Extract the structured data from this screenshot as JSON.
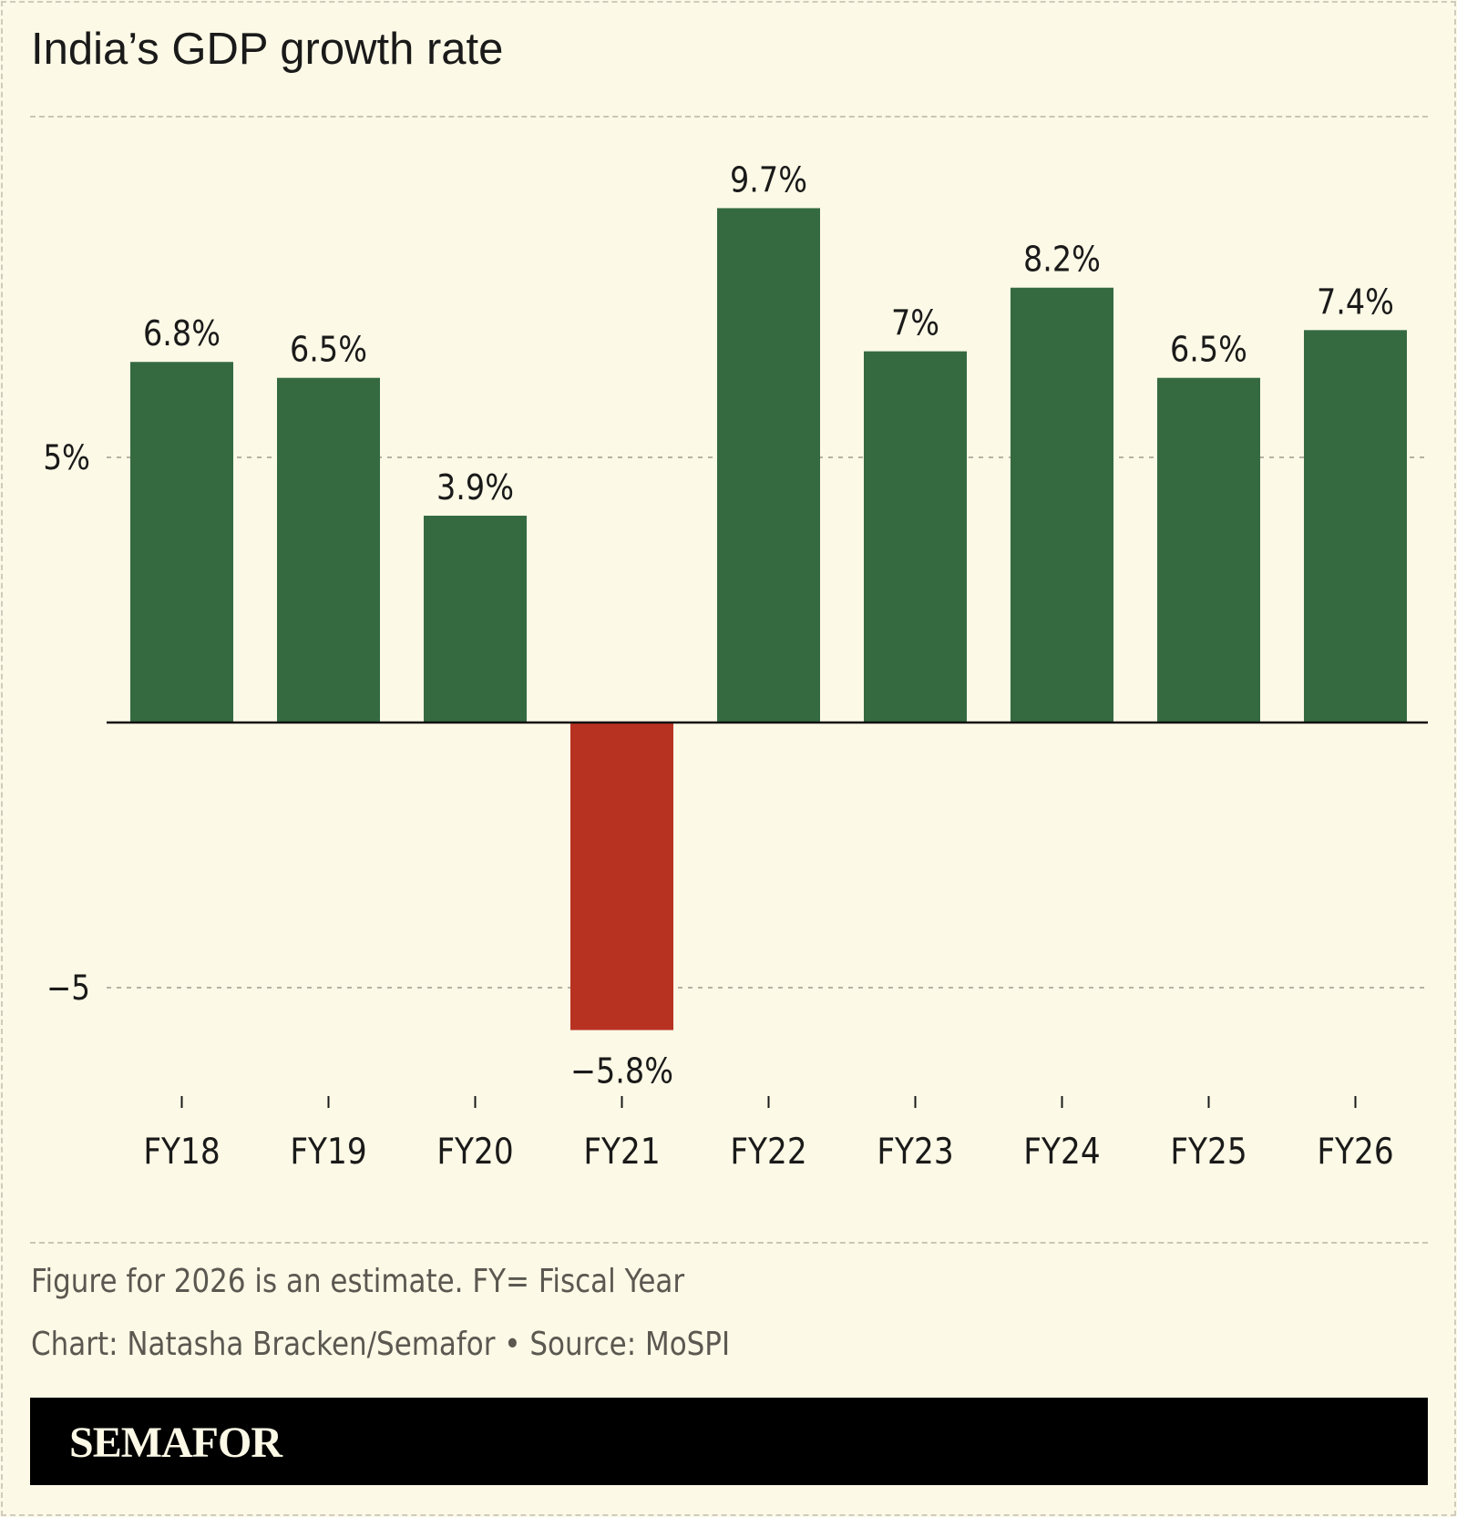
{
  "title": "India’s GDP growth rate",
  "chart_data": {
    "type": "bar",
    "title": "India’s GDP growth rate",
    "categories": [
      "FY18",
      "FY19",
      "FY20",
      "FY21",
      "FY22",
      "FY23",
      "FY24",
      "FY25",
      "FY26"
    ],
    "values": [
      6.8,
      6.5,
      3.9,
      -5.8,
      9.7,
      7,
      8.2,
      6.5,
      7.4
    ],
    "data_labels": [
      "6.8%",
      "6.5%",
      "3.9%",
      "−5.8%",
      "9.7%",
      "7%",
      "8.2%",
      "6.5%",
      "7.4%"
    ],
    "yticks": [
      {
        "value": 5,
        "label": "5%"
      },
      {
        "value": -5,
        "label": "−5"
      }
    ],
    "ylim": [
      -7,
      11
    ],
    "grid": true,
    "colors": {
      "positive": "#356a41",
      "negative": "#b83222"
    },
    "xlabel": "",
    "ylabel": ""
  },
  "notes": {
    "footnote": "Figure for 2026 is an estimate. FY= Fiscal Year",
    "credit": "Chart: Natasha Bracken/Semafor • Source: MoSPI"
  },
  "brand": "SEMAFOR"
}
